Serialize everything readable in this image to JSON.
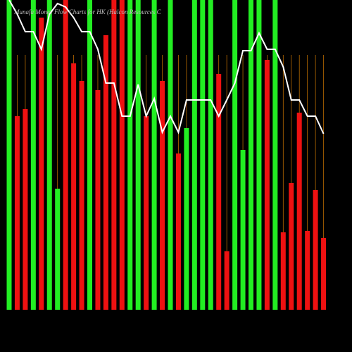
{
  "chart_data": {
    "type": "bar",
    "title": "Munafa Money Flow Charts for HK (Halcon Resources C",
    "values": [
      440,
      275,
      285,
      440,
      415,
      440,
      172,
      440,
      350,
      325,
      440,
      312,
      390,
      440,
      440,
      440,
      440,
      275,
      440,
      325,
      440,
      222,
      258,
      440,
      440,
      440,
      335,
      83,
      440,
      227,
      440,
      440,
      355,
      440,
      110,
      180,
      280,
      112,
      170,
      102
    ],
    "colors": [
      "#22ee22",
      "#ee1111",
      "#ee1111",
      "#22ee22",
      "#ee1111",
      "#22ee22",
      "#22ee22",
      "#ee1111",
      "#ee1111",
      "#ee1111",
      "#22ee22",
      "#ee1111",
      "#ee1111",
      "#ee1111",
      "#ee1111",
      "#22ee22",
      "#22ee22",
      "#ee1111",
      "#22ee22",
      "#ee1111",
      "#22ee22",
      "#ee1111",
      "#22ee22",
      "#22ee22",
      "#22ee22",
      "#22ee22",
      "#ee1111",
      "#ee1111",
      "#22ee22",
      "#22ee22",
      "#22ee22",
      "#22ee22",
      "#ee1111",
      "#22ee22",
      "#ee1111",
      "#ee1111",
      "#ee1111",
      "#ee1111",
      "#ee1111",
      "#ee1111"
    ],
    "line": {
      "color": "#ffffff",
      "values": [
        440,
        420,
        395,
        395,
        370,
        420,
        435,
        430,
        415,
        395,
        395,
        370,
        322,
        322,
        275,
        275,
        320,
        275,
        300,
        252,
        275,
        252,
        298,
        298,
        298,
        298,
        275,
        298,
        322,
        368,
        368,
        393,
        370,
        370,
        345,
        298,
        298,
        275,
        275,
        250
      ]
    },
    "ylim": [
      0,
      440
    ]
  }
}
